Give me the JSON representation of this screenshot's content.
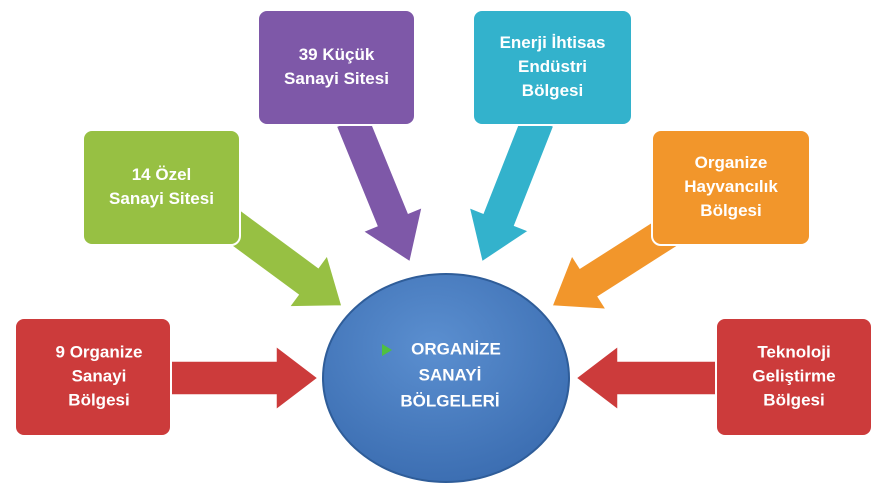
{
  "center": {
    "lines": [
      "ORGANİZE",
      "SANAYİ",
      "BÖLGELERİ"
    ]
  },
  "nodes": [
    {
      "lines": [
        "9 Organize",
        "Sanayi",
        "Bölgesi"
      ]
    },
    {
      "lines": [
        "14 Özel",
        "Sanayi Sitesi"
      ]
    },
    {
      "lines": [
        "39 Küçük",
        "Sanayi Sitesi"
      ]
    },
    {
      "lines": [
        "Enerji İhtisas",
        "Endüstri",
        "Bölgesi"
      ]
    },
    {
      "lines": [
        "Organize",
        "Hayvancılık",
        "Bölgesi"
      ]
    },
    {
      "lines": [
        "Teknoloji",
        "Geliştirme",
        "Bölgesi"
      ]
    }
  ]
}
